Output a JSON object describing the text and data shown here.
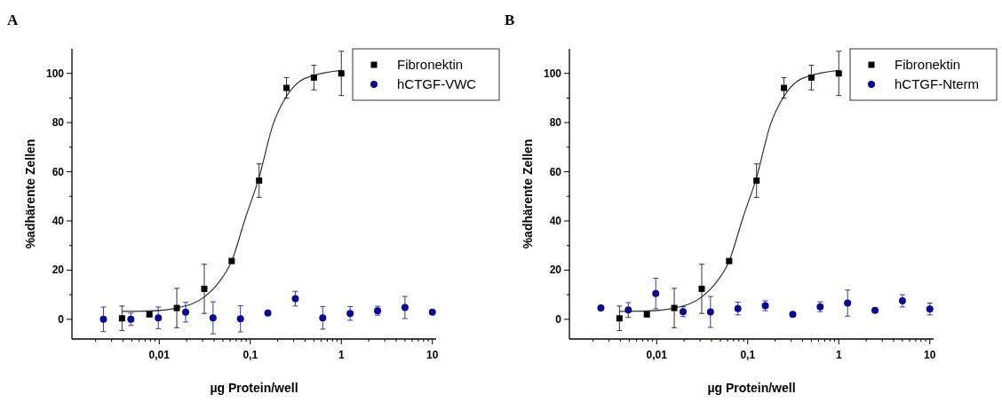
{
  "chart_data": [
    {
      "type": "scatter",
      "title": "A",
      "xlabel": "µg Protein/well",
      "ylabel": "%adhärente Zellen",
      "log": "x",
      "xlim": [
        0.0011,
        11
      ],
      "xticks": [
        {
          "value": 0.002,
          "label": null
        },
        {
          "value": 0.003,
          "label": null
        },
        {
          "value": 0.004,
          "label": null
        },
        {
          "value": 0.005,
          "label": null
        },
        {
          "value": 0.006,
          "label": null
        },
        {
          "value": 0.007,
          "label": null
        },
        {
          "value": 0.008,
          "label": null
        },
        {
          "value": 0.009,
          "label": null
        },
        {
          "value": 0.01,
          "label": "0,01"
        },
        {
          "value": 0.02,
          "label": null
        },
        {
          "value": 0.03,
          "label": null
        },
        {
          "value": 0.04,
          "label": null
        },
        {
          "value": 0.05,
          "label": null
        },
        {
          "value": 0.06,
          "label": null
        },
        {
          "value": 0.07,
          "label": null
        },
        {
          "value": 0.08,
          "label": null
        },
        {
          "value": 0.09,
          "label": null
        },
        {
          "value": 0.1,
          "label": "0,1"
        },
        {
          "value": 0.2,
          "label": null
        },
        {
          "value": 0.3,
          "label": null
        },
        {
          "value": 0.4,
          "label": null
        },
        {
          "value": 0.5,
          "label": null
        },
        {
          "value": 0.6,
          "label": null
        },
        {
          "value": 0.7,
          "label": null
        },
        {
          "value": 0.8,
          "label": null
        },
        {
          "value": 0.9,
          "label": null
        },
        {
          "value": 1,
          "label": "1"
        },
        {
          "value": 2,
          "label": null
        },
        {
          "value": 3,
          "label": null
        },
        {
          "value": 4,
          "label": null
        },
        {
          "value": 5,
          "label": null
        },
        {
          "value": 6,
          "label": null
        },
        {
          "value": 7,
          "label": null
        },
        {
          "value": 8,
          "label": null
        },
        {
          "value": 9,
          "label": null
        },
        {
          "value": 10,
          "label": "10"
        }
      ],
      "ylim": [
        -8,
        110
      ],
      "yticks": [
        0,
        {
          "value": 10,
          "label": null
        },
        20,
        {
          "value": 30,
          "label": null
        },
        40,
        {
          "value": 50,
          "label": null
        },
        60,
        {
          "value": 70,
          "label": null
        },
        80,
        {
          "value": 90,
          "label": null
        },
        100
      ],
      "grid": false,
      "legend": "top right",
      "series": [
        {
          "type": "line",
          "color": "#333333",
          "marker": "none",
          "line_style": "solid",
          "x": [
            0.0039,
            0.0078,
            0.0156,
            0.031,
            0.044,
            0.0625,
            0.088,
            0.125,
            0.177,
            0.25,
            0.35,
            0.5,
            1
          ],
          "values": [
            3.2,
            3.4,
            4.6,
            9,
            14.5,
            23.7,
            41,
            57.7,
            79,
            90.7,
            96.8,
            99.2,
            101.2
          ]
        },
        {
          "name": "Fibronektin",
          "color": "#000000",
          "marker": "square",
          "x": [
            0.0039,
            0.0078,
            0.0156,
            0.03125,
            0.0625,
            0.125,
            0.25,
            0.5,
            1
          ],
          "values": [
            0.4,
            2,
            4.6,
            12.4,
            23.7,
            56.4,
            94.1,
            98.3,
            100
          ],
          "errors": [
            5,
            null,
            8,
            10,
            null,
            6.8,
            4.2,
            5,
            9
          ]
        },
        {
          "name": "hCTGF-VWC",
          "color": "#0a0a8c",
          "marker": "circle",
          "x": [
            0.00244,
            0.00488,
            0.00977,
            0.0195,
            0.039,
            0.078,
            0.156,
            0.3125,
            0.625,
            1.25,
            2.5,
            5,
            10
          ],
          "values": [
            0,
            0,
            0.6,
            2.9,
            0.6,
            0.2,
            2.6,
            8.4,
            0.6,
            2.4,
            3.5,
            4.8,
            2.9
          ],
          "errors": [
            5,
            2.5,
            4.4,
            4,
            6.5,
            5.3,
            null,
            3,
            4.6,
            2.8,
            1.8,
            4.5,
            null
          ]
        }
      ]
    },
    {
      "type": "scatter",
      "title": "B",
      "xlabel": "µg Protein/well",
      "ylabel": "%adhärente Zellen",
      "log": "x",
      "xlim": [
        0.0011,
        11
      ],
      "xticks": [
        {
          "value": 0.002,
          "label": null
        },
        {
          "value": 0.003,
          "label": null
        },
        {
          "value": 0.004,
          "label": null
        },
        {
          "value": 0.005,
          "label": null
        },
        {
          "value": 0.006,
          "label": null
        },
        {
          "value": 0.007,
          "label": null
        },
        {
          "value": 0.008,
          "label": null
        },
        {
          "value": 0.009,
          "label": null
        },
        {
          "value": 0.01,
          "label": "0,01"
        },
        {
          "value": 0.02,
          "label": null
        },
        {
          "value": 0.03,
          "label": null
        },
        {
          "value": 0.04,
          "label": null
        },
        {
          "value": 0.05,
          "label": null
        },
        {
          "value": 0.06,
          "label": null
        },
        {
          "value": 0.07,
          "label": null
        },
        {
          "value": 0.08,
          "label": null
        },
        {
          "value": 0.09,
          "label": null
        },
        {
          "value": 0.1,
          "label": "0,1"
        },
        {
          "value": 0.2,
          "label": null
        },
        {
          "value": 0.3,
          "label": null
        },
        {
          "value": 0.4,
          "label": null
        },
        {
          "value": 0.5,
          "label": null
        },
        {
          "value": 0.6,
          "label": null
        },
        {
          "value": 0.7,
          "label": null
        },
        {
          "value": 0.8,
          "label": null
        },
        {
          "value": 0.9,
          "label": null
        },
        {
          "value": 1,
          "label": "1"
        },
        {
          "value": 2,
          "label": null
        },
        {
          "value": 3,
          "label": null
        },
        {
          "value": 4,
          "label": null
        },
        {
          "value": 5,
          "label": null
        },
        {
          "value": 6,
          "label": null
        },
        {
          "value": 7,
          "label": null
        },
        {
          "value": 8,
          "label": null
        },
        {
          "value": 9,
          "label": null
        },
        {
          "value": 10,
          "label": "10"
        }
      ],
      "ylim": [
        -8,
        110
      ],
      "yticks": [
        0,
        {
          "value": 10,
          "label": null
        },
        20,
        {
          "value": 30,
          "label": null
        },
        40,
        {
          "value": 50,
          "label": null
        },
        60,
        {
          "value": 70,
          "label": null
        },
        80,
        {
          "value": 90,
          "label": null
        },
        100
      ],
      "grid": false,
      "legend": "top right",
      "series": [
        {
          "type": "line",
          "color": "#333333",
          "marker": "none",
          "line_style": "solid",
          "x": [
            0.0039,
            0.0078,
            0.0156,
            0.031,
            0.044,
            0.0625,
            0.088,
            0.125,
            0.177,
            0.25,
            0.35,
            0.5,
            1
          ],
          "values": [
            3.2,
            3.4,
            4.6,
            9,
            14.5,
            23.7,
            41,
            57.7,
            79,
            90.7,
            96.8,
            99.2,
            101.2
          ]
        },
        {
          "name": "Fibronektin",
          "color": "#000000",
          "marker": "square",
          "x": [
            0.0039,
            0.0078,
            0.0156,
            0.03125,
            0.0625,
            0.125,
            0.25,
            0.5,
            1
          ],
          "values": [
            0.4,
            2,
            4.6,
            12.4,
            23.7,
            56.4,
            94.1,
            98.3,
            100
          ],
          "errors": [
            5,
            null,
            8,
            10,
            null,
            6.8,
            4.2,
            5,
            9
          ]
        },
        {
          "name": "hCTGF-Nterm",
          "color": "#0a0a8c",
          "marker": "circle",
          "x": [
            0.00244,
            0.00488,
            0.00977,
            0.0195,
            0.039,
            0.078,
            0.156,
            0.3125,
            0.625,
            1.25,
            2.5,
            5,
            10
          ],
          "values": [
            4.6,
            3.8,
            10.5,
            3.1,
            3,
            4.4,
            5.5,
            2,
            5.1,
            6.6,
            3.6,
            7.5,
            4.2
          ],
          "errors": [
            null,
            3,
            6.2,
            2,
            6.3,
            2.6,
            2,
            null,
            2,
            5.3,
            null,
            2.5,
            2.4
          ]
        }
      ]
    }
  ]
}
